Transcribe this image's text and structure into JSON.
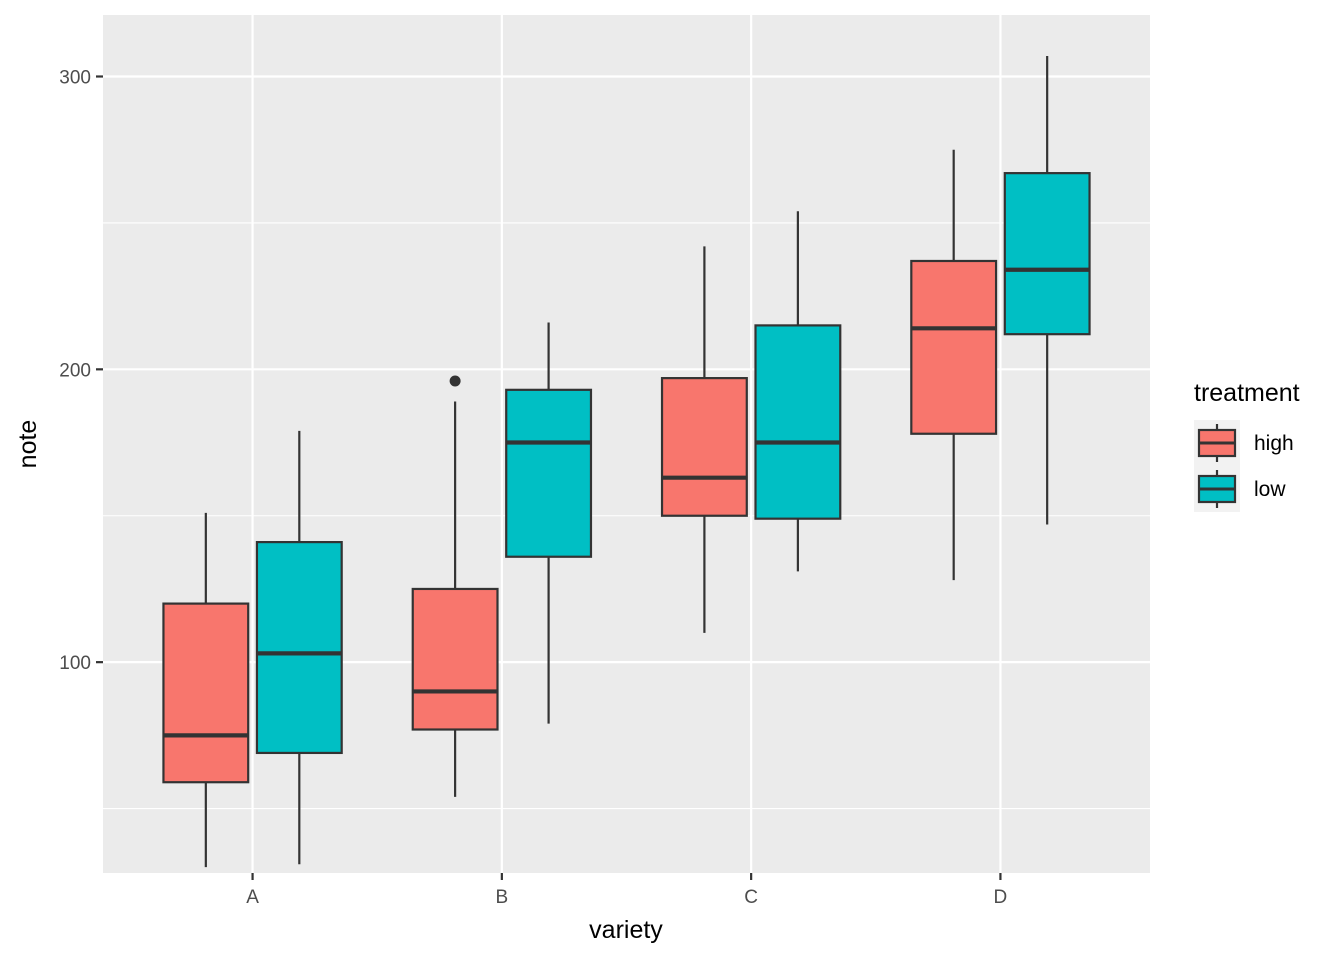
{
  "chart_data": {
    "type": "boxplot",
    "xlabel": "variety",
    "ylabel": "note",
    "categories": [
      "A",
      "B",
      "C",
      "D"
    ],
    "ylim": [
      28,
      321
    ],
    "y_ticks": [
      100,
      200,
      300
    ],
    "y_tick_labels": [
      "100",
      "200",
      "300"
    ],
    "grid": true,
    "legend": {
      "title": "treatment",
      "position": "right"
    },
    "series": [
      {
        "name": "high",
        "color": "#F8766D",
        "boxes": [
          {
            "category": "A",
            "min": 30,
            "q1": 59,
            "median": 75,
            "q3": 120,
            "max": 151,
            "outliers": []
          },
          {
            "category": "B",
            "min": 54,
            "q1": 77,
            "median": 90,
            "q3": 125,
            "max": 189,
            "outliers": [
              196
            ]
          },
          {
            "category": "C",
            "min": 110,
            "q1": 150,
            "median": 163,
            "q3": 197,
            "max": 242,
            "outliers": []
          },
          {
            "category": "D",
            "min": 128,
            "q1": 178,
            "median": 214,
            "q3": 237,
            "max": 275,
            "outliers": []
          }
        ]
      },
      {
        "name": "low",
        "color": "#00BFC4",
        "boxes": [
          {
            "category": "A",
            "min": 31,
            "q1": 69,
            "median": 103,
            "q3": 141,
            "max": 179,
            "outliers": []
          },
          {
            "category": "B",
            "min": 79,
            "q1": 136,
            "median": 175,
            "q3": 193,
            "max": 216,
            "outliers": []
          },
          {
            "category": "C",
            "min": 131,
            "q1": 149,
            "median": 175,
            "q3": 215,
            "max": 254,
            "outliers": []
          },
          {
            "category": "D",
            "min": 147,
            "q1": 212,
            "median": 234,
            "q3": 267,
            "max": 307,
            "outliers": []
          }
        ]
      }
    ]
  }
}
